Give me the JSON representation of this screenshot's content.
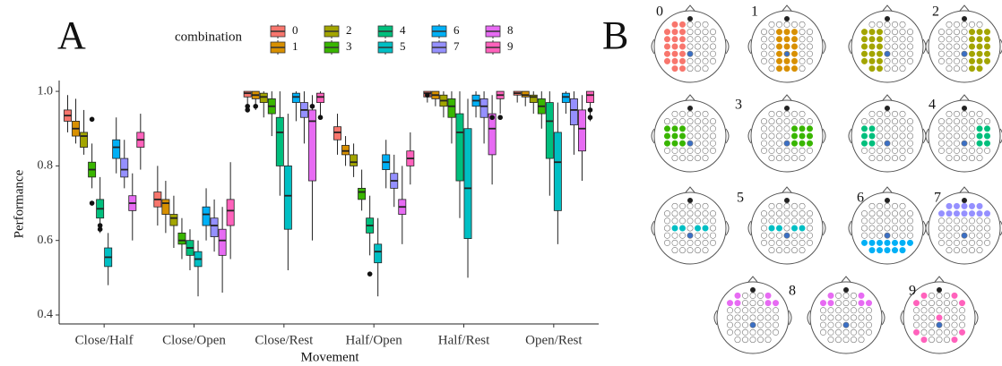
{
  "chart_data": {
    "type": "box",
    "panel_label": "A",
    "x_label": "Movement",
    "y_label": "Performance",
    "legend_title": "combination",
    "categories": [
      "Close/Half",
      "Close/Open",
      "Close/Rest",
      "Half/Open",
      "Half/Rest",
      "Open/Rest"
    ],
    "ylim": [
      0.376,
      1.029
    ],
    "yticks": [
      0.4,
      0.6,
      0.8,
      {
        "value": 1,
        "label": "1.0"
      }
    ],
    "series": [
      {
        "name": "0",
        "color": "#F8766D",
        "boxes": [
          {
            "min": 0.89,
            "q1": 0.92,
            "median": 0.935,
            "q3": 0.95,
            "max": 0.99
          },
          {
            "min": 0.64,
            "q1": 0.69,
            "median": 0.71,
            "q3": 0.73,
            "max": 0.8
          },
          {
            "min": 0.96,
            "q1": 0.985,
            "median": 0.995,
            "q3": 1.0,
            "max": 1.0,
            "outliers": [
              0.96,
              0.95
            ]
          },
          {
            "min": 0.83,
            "q1": 0.87,
            "median": 0.89,
            "q3": 0.905,
            "max": 0.94
          },
          {
            "min": 0.97,
            "q1": 0.985,
            "median": 0.995,
            "q3": 1.0,
            "max": 1.0,
            "outliers": [
              0.99
            ]
          },
          {
            "min": 0.97,
            "q1": 0.99,
            "median": 0.995,
            "q3": 1.0,
            "max": 1.0
          }
        ]
      },
      {
        "name": "1",
        "color": "#D89000",
        "boxes": [
          {
            "min": 0.86,
            "q1": 0.88,
            "median": 0.9,
            "q3": 0.92,
            "max": 0.98
          },
          {
            "min": 0.62,
            "q1": 0.67,
            "median": 0.7,
            "q3": 0.71,
            "max": 0.76
          },
          {
            "min": 0.95,
            "q1": 0.98,
            "median": 0.99,
            "q3": 1.0,
            "max": 1.0,
            "outliers": [
              0.96
            ]
          },
          {
            "min": 0.8,
            "q1": 0.83,
            "median": 0.84,
            "q3": 0.855,
            "max": 0.88
          },
          {
            "min": 0.96,
            "q1": 0.98,
            "median": 0.99,
            "q3": 1.0,
            "max": 1.0
          },
          {
            "min": 0.96,
            "q1": 0.985,
            "median": 0.99,
            "q3": 1.0,
            "max": 1.0
          }
        ]
      },
      {
        "name": "2",
        "color": "#A3A500",
        "boxes": [
          {
            "min": 0.83,
            "q1": 0.85,
            "median": 0.88,
            "q3": 0.89,
            "max": 0.95
          },
          {
            "min": 0.58,
            "q1": 0.64,
            "median": 0.66,
            "q3": 0.67,
            "max": 0.72
          },
          {
            "min": 0.93,
            "q1": 0.97,
            "median": 0.985,
            "q3": 0.995,
            "max": 1.0
          },
          {
            "min": 0.77,
            "q1": 0.8,
            "median": 0.81,
            "q3": 0.83,
            "max": 0.86
          },
          {
            "min": 0.93,
            "q1": 0.96,
            "median": 0.975,
            "q3": 0.99,
            "max": 1.0
          },
          {
            "min": 0.94,
            "q1": 0.97,
            "median": 0.985,
            "q3": 0.99,
            "max": 1.0
          }
        ]
      },
      {
        "name": "3",
        "color": "#39B600",
        "boxes": [
          {
            "min": 0.74,
            "q1": 0.77,
            "median": 0.79,
            "q3": 0.81,
            "max": 0.86,
            "outliers": [
              0.925,
              0.7
            ]
          },
          {
            "min": 0.55,
            "q1": 0.59,
            "median": 0.6,
            "q3": 0.62,
            "max": 0.66
          },
          {
            "min": 0.88,
            "q1": 0.94,
            "median": 0.96,
            "q3": 0.98,
            "max": 1.0
          },
          {
            "min": 0.68,
            "q1": 0.71,
            "median": 0.73,
            "q3": 0.74,
            "max": 0.79
          },
          {
            "min": 0.86,
            "q1": 0.93,
            "median": 0.96,
            "q3": 0.98,
            "max": 1.0
          },
          {
            "min": 0.9,
            "q1": 0.94,
            "median": 0.96,
            "q3": 0.98,
            "max": 1.0
          }
        ]
      },
      {
        "name": "4",
        "color": "#00BF7D",
        "boxes": [
          {
            "min": 0.62,
            "q1": 0.66,
            "median": 0.685,
            "q3": 0.71,
            "max": 0.77,
            "outliers": [
              0.64,
              0.63
            ]
          },
          {
            "min": 0.52,
            "q1": 0.56,
            "median": 0.58,
            "q3": 0.6,
            "max": 0.63
          },
          {
            "min": 0.72,
            "q1": 0.8,
            "median": 0.89,
            "q3": 0.93,
            "max": 1.0
          },
          {
            "min": 0.56,
            "q1": 0.62,
            "median": 0.64,
            "q3": 0.66,
            "max": 0.72,
            "outliers": [
              0.51
            ]
          },
          {
            "min": 0.66,
            "q1": 0.76,
            "median": 0.89,
            "q3": 0.94,
            "max": 1.0
          },
          {
            "min": 0.72,
            "q1": 0.82,
            "median": 0.92,
            "q3": 0.97,
            "max": 1.0
          }
        ]
      },
      {
        "name": "5",
        "color": "#00BFC4",
        "boxes": [
          {
            "min": 0.48,
            "q1": 0.53,
            "median": 0.555,
            "q3": 0.58,
            "max": 0.62
          },
          {
            "min": 0.45,
            "q1": 0.53,
            "median": 0.55,
            "q3": 0.57,
            "max": 0.6
          },
          {
            "min": 0.52,
            "q1": 0.63,
            "median": 0.72,
            "q3": 0.8,
            "max": 0.94
          },
          {
            "min": 0.45,
            "q1": 0.54,
            "median": 0.57,
            "q3": 0.59,
            "max": 0.66
          },
          {
            "min": 0.5,
            "q1": 0.605,
            "median": 0.74,
            "q3": 0.9,
            "max": 0.98
          },
          {
            "min": 0.59,
            "q1": 0.68,
            "median": 0.81,
            "q3": 0.89,
            "max": 0.97
          }
        ]
      },
      {
        "name": "6",
        "color": "#00B0F6",
        "boxes": [
          {
            "min": 0.78,
            "q1": 0.82,
            "median": 0.85,
            "q3": 0.87,
            "max": 0.93
          },
          {
            "min": 0.6,
            "q1": 0.64,
            "median": 0.67,
            "q3": 0.69,
            "max": 0.74
          },
          {
            "min": 0.92,
            "q1": 0.97,
            "median": 0.985,
            "q3": 0.995,
            "max": 1.0
          },
          {
            "min": 0.74,
            "q1": 0.79,
            "median": 0.81,
            "q3": 0.83,
            "max": 0.87
          },
          {
            "min": 0.93,
            "q1": 0.96,
            "median": 0.975,
            "q3": 0.99,
            "max": 1.0
          },
          {
            "min": 0.94,
            "q1": 0.97,
            "median": 0.985,
            "q3": 0.995,
            "max": 1.0
          }
        ]
      },
      {
        "name": "7",
        "color": "#9590FF",
        "boxes": [
          {
            "min": 0.74,
            "q1": 0.77,
            "median": 0.79,
            "q3": 0.82,
            "max": 0.87
          },
          {
            "min": 0.57,
            "q1": 0.61,
            "median": 0.64,
            "q3": 0.66,
            "max": 0.71
          },
          {
            "min": 0.86,
            "q1": 0.93,
            "median": 0.95,
            "q3": 0.97,
            "max": 1.0
          },
          {
            "min": 0.69,
            "q1": 0.74,
            "median": 0.76,
            "q3": 0.78,
            "max": 0.83
          },
          {
            "min": 0.86,
            "q1": 0.93,
            "median": 0.96,
            "q3": 0.98,
            "max": 1.0
          },
          {
            "min": 0.83,
            "q1": 0.91,
            "median": 0.95,
            "q3": 0.98,
            "max": 1.0
          }
        ]
      },
      {
        "name": "8",
        "color": "#E76BF3",
        "boxes": [
          {
            "min": 0.6,
            "q1": 0.68,
            "median": 0.7,
            "q3": 0.72,
            "max": 0.78
          },
          {
            "min": 0.46,
            "q1": 0.56,
            "median": 0.6,
            "q3": 0.63,
            "max": 0.69
          },
          {
            "min": 0.6,
            "q1": 0.76,
            "median": 0.92,
            "q3": 0.95,
            "max": 0.99,
            "outliers": [
              0.96
            ]
          },
          {
            "min": 0.59,
            "q1": 0.67,
            "median": 0.69,
            "q3": 0.71,
            "max": 0.8
          },
          {
            "min": 0.75,
            "q1": 0.83,
            "median": 0.9,
            "q3": 0.94,
            "max": 0.99,
            "outliers": [
              0.93
            ]
          },
          {
            "min": 0.76,
            "q1": 0.84,
            "median": 0.9,
            "q3": 0.95,
            "max": 0.99
          }
        ]
      },
      {
        "name": "9",
        "color": "#FF62BC",
        "boxes": [
          {
            "min": 0.79,
            "q1": 0.85,
            "median": 0.87,
            "q3": 0.89,
            "max": 0.94
          },
          {
            "min": 0.55,
            "q1": 0.64,
            "median": 0.68,
            "q3": 0.71,
            "max": 0.81
          },
          {
            "min": 0.93,
            "q1": 0.97,
            "median": 0.985,
            "q3": 0.995,
            "max": 1.0,
            "outliers": [
              0.93
            ]
          },
          {
            "min": 0.75,
            "q1": 0.8,
            "median": 0.82,
            "q3": 0.84,
            "max": 0.89
          },
          {
            "min": 0.94,
            "q1": 0.98,
            "median": 0.99,
            "q3": 1.0,
            "max": 1.0,
            "outliers": [
              0.93
            ]
          },
          {
            "min": 0.92,
            "q1": 0.97,
            "median": 0.99,
            "q3": 1.0,
            "max": 1.0,
            "outliers": [
              0.95,
              0.93
            ]
          }
        ]
      }
    ]
  },
  "panel_b": {
    "panel_label": "B",
    "maps": [
      {
        "label": "0"
      },
      {
        "label": "1"
      },
      {
        "label": "2"
      },
      {
        "label": "3"
      },
      {
        "label": "4"
      },
      {
        "label": "5"
      },
      {
        "label": "6"
      },
      {
        "label": "7"
      },
      {
        "label": "8"
      },
      {
        "label": "9"
      }
    ]
  }
}
